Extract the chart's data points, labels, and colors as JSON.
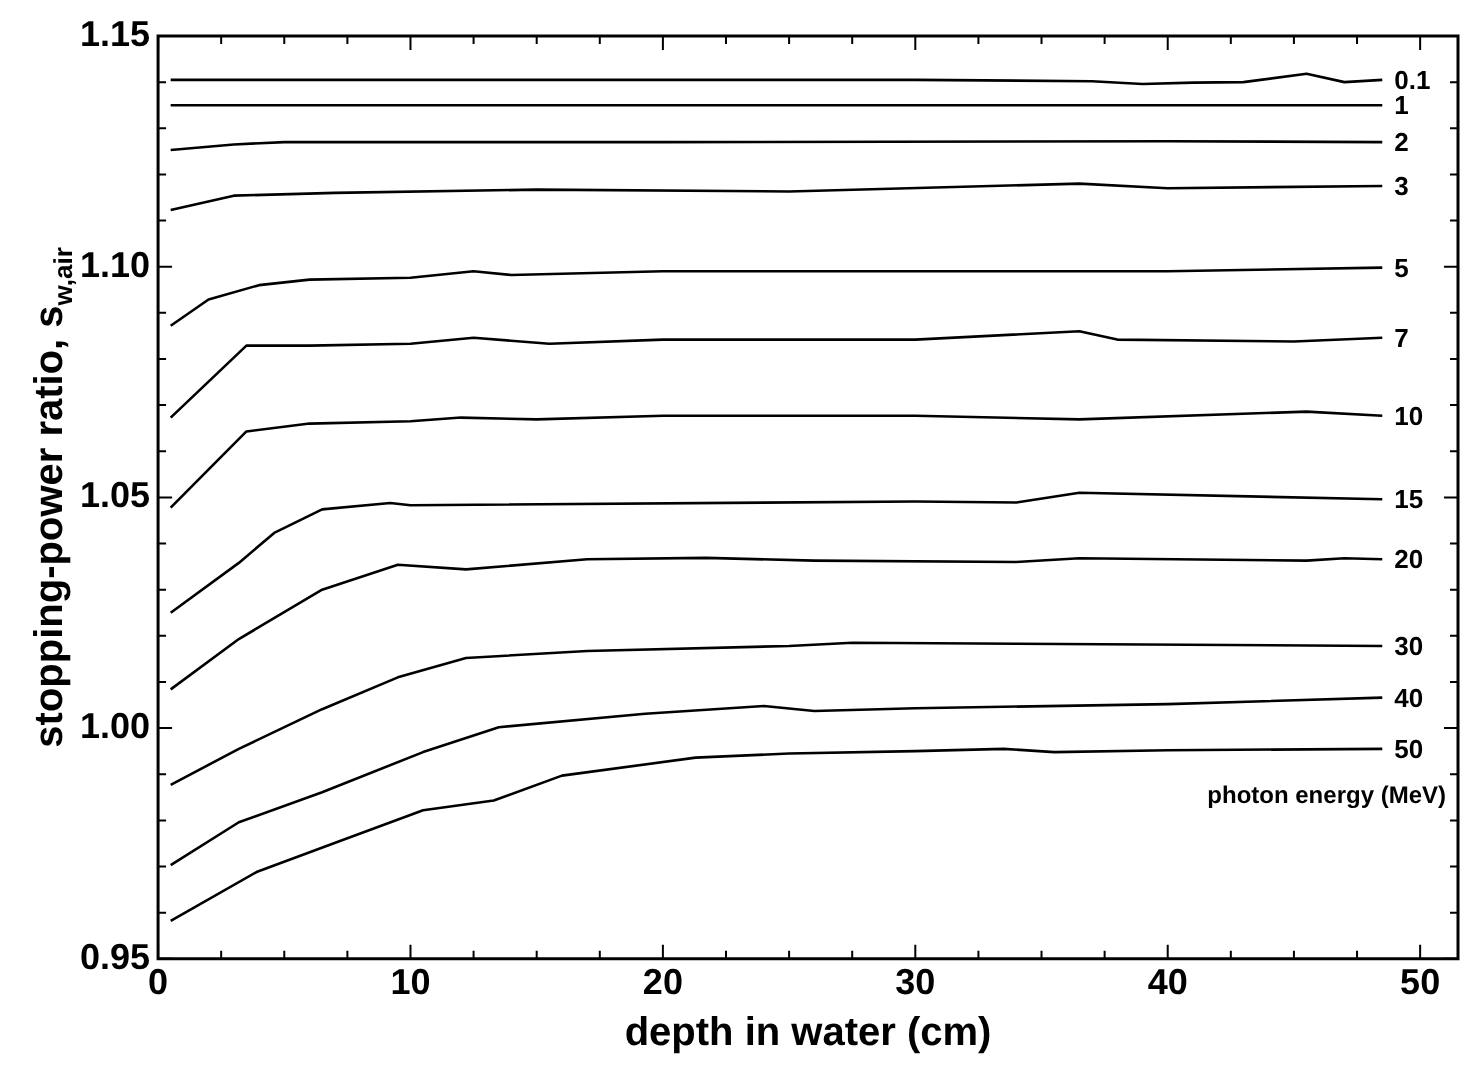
{
  "chart_data": {
    "type": "line",
    "xlabel": "depth in water (cm)",
    "ylabel": "stopping-power ratio, s$_{w,air}$",
    "legend_title": "photon energy (MeV)",
    "xlim": [
      0,
      51.5
    ],
    "ylim": [
      0.95,
      1.15
    ],
    "xticks": [
      0,
      {
        "value": 2.5,
        "label": null
      },
      {
        "value": 5,
        "label": null
      },
      {
        "value": 7.5,
        "label": null
      },
      10,
      {
        "value": 12.5,
        "label": null
      },
      {
        "value": 15,
        "label": null
      },
      {
        "value": 17.5,
        "label": null
      },
      20,
      {
        "value": 22.5,
        "label": null
      },
      {
        "value": 25,
        "label": null
      },
      {
        "value": 27.5,
        "label": null
      },
      30,
      {
        "value": 32.5,
        "label": null
      },
      {
        "value": 35,
        "label": null
      },
      {
        "value": 37.5,
        "label": null
      },
      40,
      {
        "value": 42.5,
        "label": null
      },
      {
        "value": 45,
        "label": null
      },
      {
        "value": 47.5,
        "label": null
      },
      50
    ],
    "yticks": [
      0.95,
      {
        "value": 0.96,
        "label": null
      },
      {
        "value": 0.97,
        "label": null
      },
      {
        "value": 0.98,
        "label": null
      },
      {
        "value": 0.99,
        "label": null
      },
      {
        "value": 1.0,
        "label": "1.00"
      },
      {
        "value": 1.01,
        "label": null
      },
      {
        "value": 1.02,
        "label": null
      },
      {
        "value": 1.03,
        "label": null
      },
      {
        "value": 1.04,
        "label": null
      },
      1.05,
      {
        "value": 1.06,
        "label": null
      },
      {
        "value": 1.07,
        "label": null
      },
      {
        "value": 1.08,
        "label": null
      },
      {
        "value": 1.09,
        "label": null
      },
      {
        "value": 1.1,
        "label": "1.10"
      },
      {
        "value": 1.11,
        "label": null
      },
      {
        "value": 1.12,
        "label": null
      },
      {
        "value": 1.13,
        "label": null
      },
      {
        "value": 1.14,
        "label": null
      },
      1.15
    ],
    "grid": false,
    "legend": "right",
    "marker": "none",
    "line_style": "solid",
    "series": [
      {
        "name": "0.1",
        "color": "#000000",
        "x": [
          0.5,
          10,
          30,
          37,
          39,
          41,
          43,
          45.5,
          47,
          48.5
        ],
        "values": [
          1.1405,
          1.1405,
          1.1405,
          1.1402,
          1.1396,
          1.1399,
          1.14,
          1.1418,
          1.14,
          1.1405
        ]
      },
      {
        "name": "1",
        "color": "#000000",
        "x": [
          0.5,
          48.5
        ],
        "values": [
          1.135,
          1.135
        ]
      },
      {
        "name": "2",
        "color": "#000000",
        "x": [
          0.5,
          3,
          5,
          20,
          40,
          48.5
        ],
        "values": [
          1.1253,
          1.1265,
          1.127,
          1.127,
          1.1272,
          1.127
        ]
      },
      {
        "name": "3",
        "color": "#000000",
        "x": [
          0.5,
          3,
          7,
          15,
          25,
          36.5,
          40,
          48.5
        ],
        "values": [
          1.1123,
          1.1154,
          1.116,
          1.1167,
          1.1163,
          1.118,
          1.117,
          1.1175
        ]
      },
      {
        "name": "5",
        "color": "#000000",
        "x": [
          0.5,
          2,
          4,
          6,
          10,
          12.5,
          14,
          20,
          30,
          40,
          48.5
        ],
        "values": [
          1.0872,
          1.0929,
          1.096,
          1.0972,
          1.0976,
          1.099,
          1.0982,
          1.099,
          1.099,
          1.099,
          1.0998
        ]
      },
      {
        "name": "7",
        "color": "#000000",
        "x": [
          0.5,
          3.5,
          6,
          10,
          12.5,
          15.5,
          20,
          30,
          36.5,
          38,
          45,
          48.5
        ],
        "values": [
          1.0673,
          1.0829,
          1.0829,
          1.0833,
          1.0846,
          1.0833,
          1.0842,
          1.0842,
          1.086,
          1.0842,
          1.0838,
          1.0846
        ]
      },
      {
        "name": "10",
        "color": "#000000",
        "x": [
          0.5,
          3.5,
          6,
          10,
          12,
          15,
          20,
          30,
          36.5,
          45.5,
          48.5
        ],
        "values": [
          1.0478,
          1.0643,
          1.066,
          1.0665,
          1.0673,
          1.0669,
          1.0677,
          1.0677,
          1.0669,
          1.0686,
          1.0677
        ]
      },
      {
        "name": "15",
        "color": "#000000",
        "x": [
          0.5,
          3.2,
          4.6,
          6.5,
          9.2,
          10,
          30,
          34,
          36.5,
          48.5
        ],
        "values": [
          1.025,
          1.0358,
          1.0423,
          1.0474,
          1.0488,
          1.0483,
          1.0491,
          1.0489,
          1.051,
          1.0496
        ]
      },
      {
        "name": "20",
        "color": "#000000",
        "x": [
          0.5,
          3.2,
          6.5,
          9.5,
          12.2,
          17,
          21.7,
          26,
          34,
          36.5,
          45.5,
          47,
          48.5
        ],
        "values": [
          1.0084,
          1.0193,
          1.03,
          1.0354,
          1.0344,
          1.0366,
          1.0369,
          1.0363,
          1.036,
          1.0368,
          1.0363,
          1.0368,
          1.0366
        ]
      },
      {
        "name": "30",
        "color": "#000000",
        "x": [
          0.5,
          3.2,
          6.5,
          9.5,
          12.2,
          17,
          25,
          27.5,
          48.5
        ],
        "values": [
          0.9877,
          0.9955,
          1.0041,
          1.011,
          1.0152,
          1.0167,
          1.0178,
          1.0185,
          1.0178
        ]
      },
      {
        "name": "40",
        "color": "#000000",
        "x": [
          0.5,
          3.2,
          6.5,
          10.5,
          13.5,
          19.3,
          24,
          26,
          30,
          40,
          48.5
        ],
        "values": [
          0.9703,
          0.9796,
          0.9861,
          0.9948,
          1.0002,
          1.0031,
          1.0048,
          1.0037,
          1.0043,
          1.0052,
          1.0066
        ]
      },
      {
        "name": "50",
        "color": "#000000",
        "x": [
          0.5,
          3.9,
          7.1,
          10.5,
          13.3,
          16,
          21.3,
          25,
          30,
          33.5,
          35.5,
          40,
          48.5
        ],
        "values": [
          0.9582,
          0.9688,
          0.9753,
          0.9822,
          0.9843,
          0.9897,
          0.9936,
          0.9945,
          0.995,
          0.9955,
          0.9948,
          0.9952,
          0.9955
        ]
      }
    ]
  }
}
